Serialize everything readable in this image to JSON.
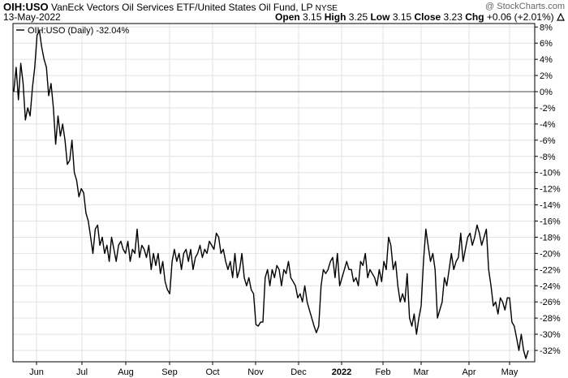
{
  "header": {
    "symbol": "OIH:USO",
    "name": "VanEck Vectors Oil Services ETF/United States Oil Fund, LP",
    "exchange": "NYSE",
    "watermark": "@ StockCharts.com",
    "date": "13-May-2022",
    "quote": {
      "open_label": "Open",
      "open": "3.15",
      "high_label": "High",
      "high": "3.25",
      "low_label": "Low",
      "low": "3.15",
      "close_label": "Close",
      "close": "3.23",
      "chg_label": "Chg",
      "chg": "+0.06 (+2.01%)"
    },
    "trend_icon": "up-arrow-icon"
  },
  "legend": {
    "text": "OIH:USO (Daily) -32.04%"
  },
  "chart_data": {
    "type": "line",
    "title": "",
    "xlabel": "",
    "ylabel": "",
    "grid": true,
    "legend_position": "top-left",
    "ylim": [
      -34,
      9
    ],
    "y_ticks": [
      8,
      6,
      4,
      2,
      0,
      -2,
      -4,
      -6,
      -8,
      -10,
      -12,
      -14,
      -16,
      -18,
      -20,
      -22,
      -24,
      -26,
      -28,
      -30,
      -32
    ],
    "y_tick_labels": [
      "8%",
      "6%",
      "4%",
      "2%",
      "0%",
      "-2%",
      "-4%",
      "-6%",
      "-8%",
      "-10%",
      "-12%",
      "-14%",
      "-16%",
      "-18%",
      "-20%",
      "-22%",
      "-24%",
      "-26%",
      "-28%",
      "-30%",
      "-32%"
    ],
    "x_ticks": [
      "Jun",
      "Jul",
      "Aug",
      "Sep",
      "Oct",
      "Nov",
      "Dec",
      "2022",
      "Feb",
      "Mar",
      "Apr",
      "May"
    ],
    "x_tick_bold": [
      false,
      false,
      false,
      false,
      false,
      false,
      false,
      true,
      false,
      false,
      false,
      false
    ],
    "series": [
      {
        "name": "OIH:USO (Daily)",
        "color": "#000000",
        "values": [
          0,
          3,
          -1,
          3.5,
          1,
          -3.5,
          -2,
          -3,
          0.5,
          3,
          7,
          7.5,
          5.5,
          4,
          3,
          -0.5,
          1,
          -2,
          -6.5,
          -3,
          -5.5,
          -4,
          -6,
          -9,
          -8.5,
          -6,
          -10,
          -11,
          -13,
          -12,
          -12.5,
          -15,
          -16,
          -18,
          -20,
          -17,
          -16.5,
          -19,
          -18,
          -20,
          -19,
          -21,
          -18,
          -19.5,
          -21,
          -19,
          -18.5,
          -19.5,
          -20,
          -18.5,
          -21,
          -19.5,
          -20,
          -17,
          -20.5,
          -19,
          -19.5,
          -20.5,
          -19,
          -22,
          -20,
          -21.5,
          -20,
          -22.5,
          -21,
          -23.5,
          -24.5,
          -25,
          -21,
          -19.5,
          -21,
          -20,
          -22,
          -20,
          -19.5,
          -21,
          -19.5,
          -22,
          -20.5,
          -20,
          -19,
          -20.5,
          -19.5,
          -20,
          -18.5,
          -19,
          -19.5,
          -17.5,
          -18,
          -20,
          -19.5,
          -21,
          -22,
          -21,
          -23,
          -20,
          -23,
          -22,
          -20,
          -23,
          -24,
          -23,
          -24.5,
          -25,
          -28.8,
          -29,
          -28.5,
          -28.5,
          -23,
          -22,
          -24,
          -22,
          -23,
          -21.5,
          -22,
          -24,
          -22,
          -22.5,
          -21,
          -23,
          -23.5,
          -24,
          -25.5,
          -25,
          -26,
          -24,
          -26,
          -27,
          -28,
          -29,
          -29.8,
          -29,
          -24,
          -22,
          -22.5,
          -22,
          -21,
          -20.5,
          -23,
          -20,
          -24,
          -23,
          -22,
          -21,
          -22,
          -22,
          -23.5,
          -23,
          -24,
          -21,
          -21.5,
          -20,
          -23,
          -22,
          -22.5,
          -23,
          -24,
          -22,
          -23.5,
          -21,
          -22,
          -18,
          -19,
          -22,
          -21,
          -24,
          -26,
          -25,
          -26,
          -22.5,
          -28,
          -29,
          -27.5,
          -30,
          -28,
          -26.5,
          -21,
          -17,
          -19,
          -21,
          -20,
          -22,
          -28,
          -27,
          -26,
          -23,
          -24,
          -22,
          -20,
          -22,
          -21,
          -20.5,
          -17.5,
          -21,
          -19.5,
          -18,
          -17.5,
          -19,
          -18,
          -16.5,
          -17.5,
          -19,
          -18,
          -17,
          -22,
          -24,
          -26.5,
          -26,
          -27.5,
          -25.5,
          -26,
          -27,
          -25.5,
          -25.5,
          -28.5,
          -29,
          -30.5,
          -32,
          -30,
          -32,
          -33,
          -32
        ]
      }
    ]
  }
}
